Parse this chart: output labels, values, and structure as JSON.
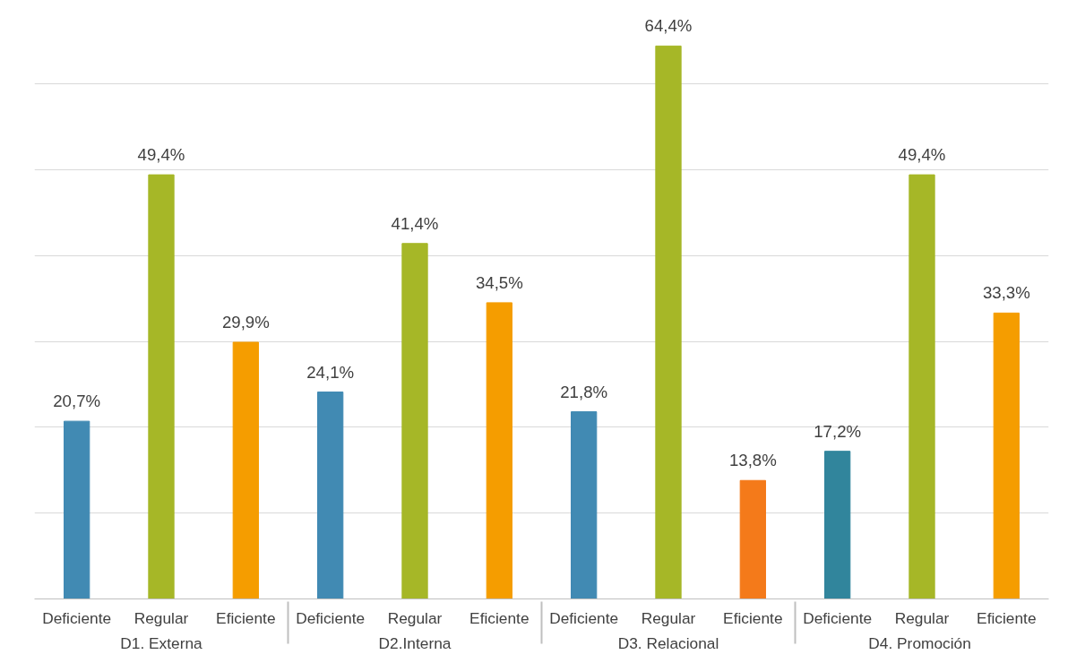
{
  "chart_data": {
    "type": "bar",
    "categories": [
      "D1. Externa",
      "D2.Interna",
      "D3. Relacional",
      "D4.  Promoción"
    ],
    "series": [
      {
        "name": "Deficiente",
        "colors": [
          "#418ab3",
          "#418ab3",
          "#418ab3",
          "#31859c"
        ],
        "values": [
          20.7,
          24.1,
          21.8,
          17.2
        ],
        "value_labels": [
          "20,7%",
          "24,1%",
          "21,8%",
          "17,2%"
        ]
      },
      {
        "name": "Regular",
        "colors": [
          "#a6b727",
          "#a6b727",
          "#a6b727",
          "#a6b727"
        ],
        "values": [
          49.4,
          41.4,
          64.4,
          49.4
        ],
        "value_labels": [
          "49,4%",
          "41,4%",
          "64,4%",
          "49,4%"
        ]
      },
      {
        "name": "Eficiente",
        "colors": [
          "#f59d00",
          "#f59d00",
          "#f47a1a",
          "#f59d00"
        ],
        "values": [
          29.9,
          34.5,
          13.8,
          33.3
        ],
        "value_labels": [
          "29,9%",
          "34,5%",
          "13,8%",
          "33,3%"
        ]
      }
    ],
    "grid": "y",
    "tick_labels": "x"
  }
}
